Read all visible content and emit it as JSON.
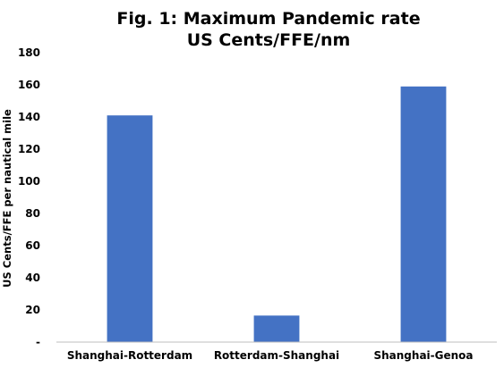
{
  "chart_data": {
    "type": "bar",
    "title": "Fig. 1: Maximum Pandemic rate",
    "subtitle": "US Cents/FFE/nm",
    "xlabel": "",
    "ylabel": "US Cents/FFE per nautical mile",
    "categories": [
      "Shanghai-Rotterdam",
      "Rotterdam-Shanghai",
      "Shanghai-Genoa"
    ],
    "values": [
      141,
      16.5,
      159
    ],
    "ylim": [
      0,
      180
    ],
    "yticks": [
      0,
      20,
      40,
      60,
      80,
      100,
      120,
      140,
      160,
      180
    ],
    "ytick_labels": [
      "-",
      "20",
      "40",
      "60",
      "80",
      "100",
      "120",
      "140",
      "160",
      "180"
    ],
    "grid": false,
    "bar_color": "#4472C4",
    "axis_color": "#BFBFBF"
  }
}
